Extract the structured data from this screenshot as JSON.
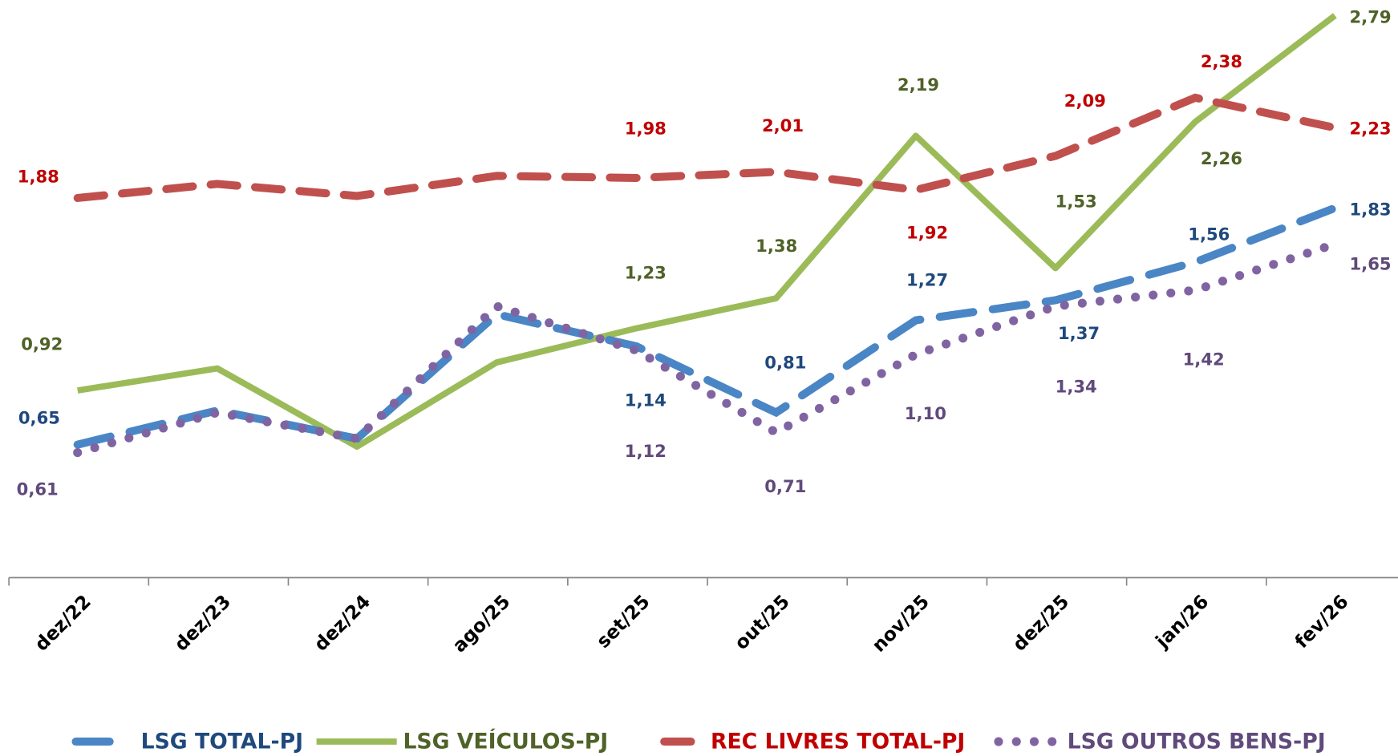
{
  "chart_data": {
    "type": "line",
    "categories": [
      "dez/22",
      "dez/23",
      "dez/24",
      "ago/25",
      "set/25",
      "out/25",
      "nov/25",
      "dez/25",
      "jan/26",
      "fev/26"
    ],
    "series": [
      {
        "name": "LSG TOTAL-PJ",
        "color": "#4a86c5",
        "label_color": "#1f497d",
        "style": "dash",
        "values": [
          0.65,
          0.82,
          0.68,
          1.3,
          1.14,
          0.81,
          1.27,
          1.37,
          1.56,
          1.83
        ],
        "value_labels": [
          "0,65",
          null,
          null,
          null,
          "1,14",
          "0,81",
          "1,27",
          "1,37",
          "1,56",
          "1,83"
        ]
      },
      {
        "name": "LSG VEÍCULOS-PJ",
        "color": "#9bbb59",
        "label_color": "#4f6228",
        "style": "solid",
        "values": [
          0.92,
          1.03,
          0.64,
          1.06,
          1.23,
          1.38,
          2.19,
          1.53,
          2.26,
          2.79
        ],
        "value_labels": [
          "0,92",
          null,
          null,
          null,
          "1,23",
          "1,38",
          "2,19",
          "1,53",
          "2,26",
          "2,79"
        ]
      },
      {
        "name": "REC LIVRES TOTAL-PJ",
        "color": "#c0504d",
        "label_color": "#c00000",
        "style": "longdash",
        "values": [
          1.88,
          1.95,
          1.89,
          1.99,
          1.98,
          2.01,
          1.92,
          2.09,
          2.38,
          2.23
        ],
        "value_labels": [
          "1,88",
          null,
          null,
          null,
          "1,98",
          "2,01",
          "1,92",
          "2,09",
          "2,38",
          "2,23"
        ]
      },
      {
        "name": "LSG OUTROS BENS-PJ",
        "color": "#8064a2",
        "label_color": "#604a7b",
        "style": "dot",
        "values": [
          0.61,
          0.81,
          0.68,
          1.34,
          1.12,
          0.71,
          1.1,
          1.34,
          1.42,
          1.65
        ],
        "value_labels": [
          "0,61",
          null,
          null,
          null,
          "1,12",
          "0,71",
          "1,10",
          "1,34",
          "1,42",
          "1,65"
        ]
      }
    ],
    "legend": "bottom"
  }
}
